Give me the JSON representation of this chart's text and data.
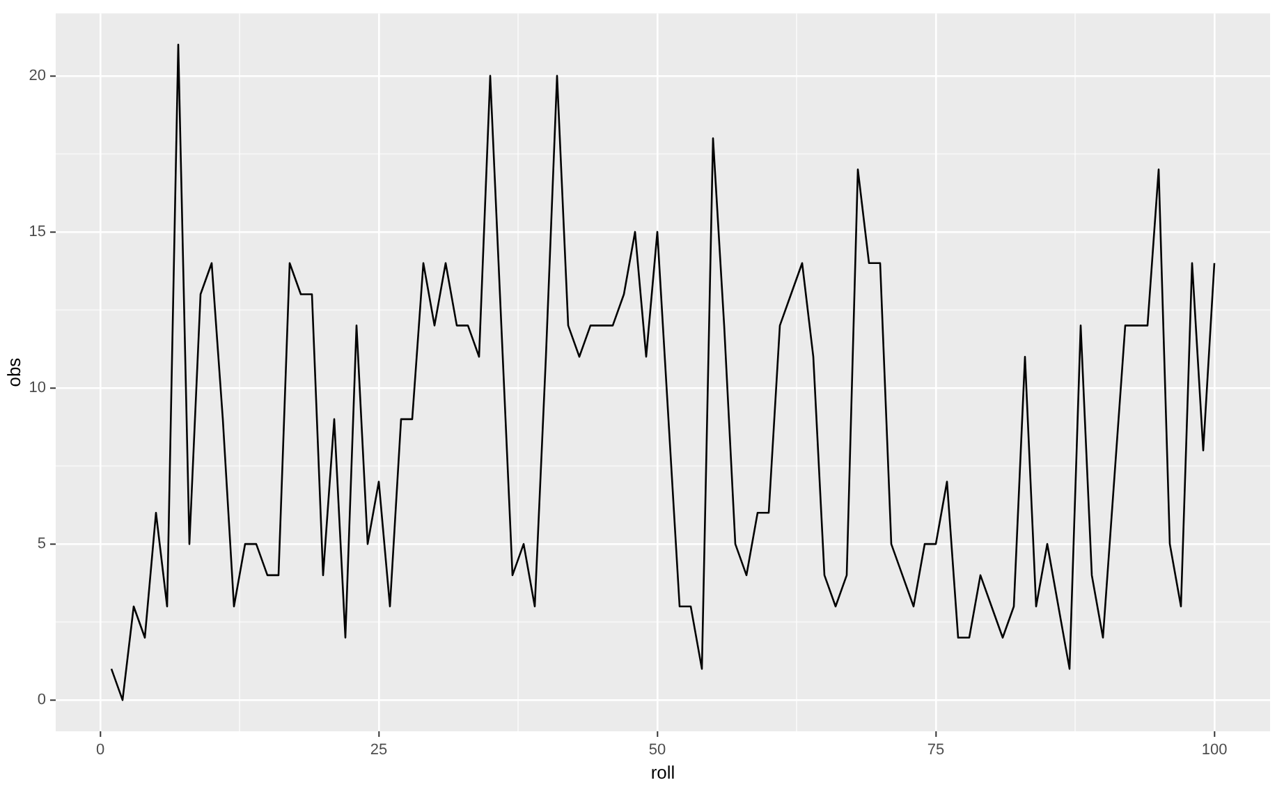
{
  "chart_data": {
    "type": "line",
    "xlabel": "roll",
    "ylabel": "obs",
    "x": [
      1,
      2,
      3,
      4,
      5,
      6,
      7,
      8,
      9,
      10,
      11,
      12,
      13,
      14,
      15,
      16,
      17,
      18,
      19,
      20,
      21,
      22,
      23,
      24,
      25,
      26,
      27,
      28,
      29,
      30,
      31,
      32,
      33,
      34,
      35,
      36,
      37,
      38,
      39,
      40,
      41,
      42,
      43,
      44,
      45,
      46,
      47,
      48,
      49,
      50,
      51,
      52,
      53,
      54,
      55,
      56,
      57,
      58,
      59,
      60,
      61,
      62,
      63,
      64,
      65,
      66,
      67,
      68,
      69,
      70,
      71,
      72,
      73,
      74,
      75,
      76,
      77,
      78,
      79,
      80,
      81,
      82,
      83,
      84,
      85,
      86,
      87,
      88,
      89,
      90,
      91,
      92,
      93,
      94,
      95,
      96,
      97,
      98,
      99,
      100
    ],
    "values": [
      1,
      0,
      3,
      2,
      6,
      3,
      21,
      5,
      13,
      14,
      9,
      3,
      5,
      5,
      4,
      4,
      14,
      13,
      13,
      4,
      9,
      2,
      12,
      5,
      7,
      3,
      9,
      9,
      14,
      12,
      14,
      12,
      12,
      11,
      20,
      12,
      4,
      5,
      3,
      11,
      20,
      12,
      11,
      12,
      12,
      12,
      13,
      15,
      11,
      15,
      9,
      3,
      3,
      1,
      18,
      12,
      5,
      4,
      6,
      6,
      12,
      13,
      14,
      11,
      4,
      3,
      4,
      17,
      14,
      14,
      5,
      4,
      3,
      5,
      5,
      7,
      2,
      2,
      4,
      3,
      2,
      3,
      11,
      3,
      5,
      3,
      1,
      12,
      4,
      2,
      7,
      12,
      12,
      12,
      17,
      5,
      3,
      14,
      8,
      14
    ],
    "color": "#000000",
    "xlim": [
      -4,
      105
    ],
    "xticks": [
      0,
      {
        "value": 12.5,
        "label": null
      },
      25,
      {
        "value": 37.5,
        "label": null
      },
      50,
      {
        "value": 62.5,
        "label": null
      },
      75,
      {
        "value": 87.5,
        "label": null
      },
      100
    ],
    "ylim": [
      -1,
      22
    ],
    "yticks": [
      0,
      {
        "value": 2.5,
        "label": null
      },
      5,
      {
        "value": 7.5,
        "label": null
      },
      10,
      {
        "value": 12.5,
        "label": null
      },
      15,
      {
        "value": 17.5,
        "label": null
      },
      20
    ],
    "grid": true,
    "marker": "none",
    "line_style": "solid"
  }
}
